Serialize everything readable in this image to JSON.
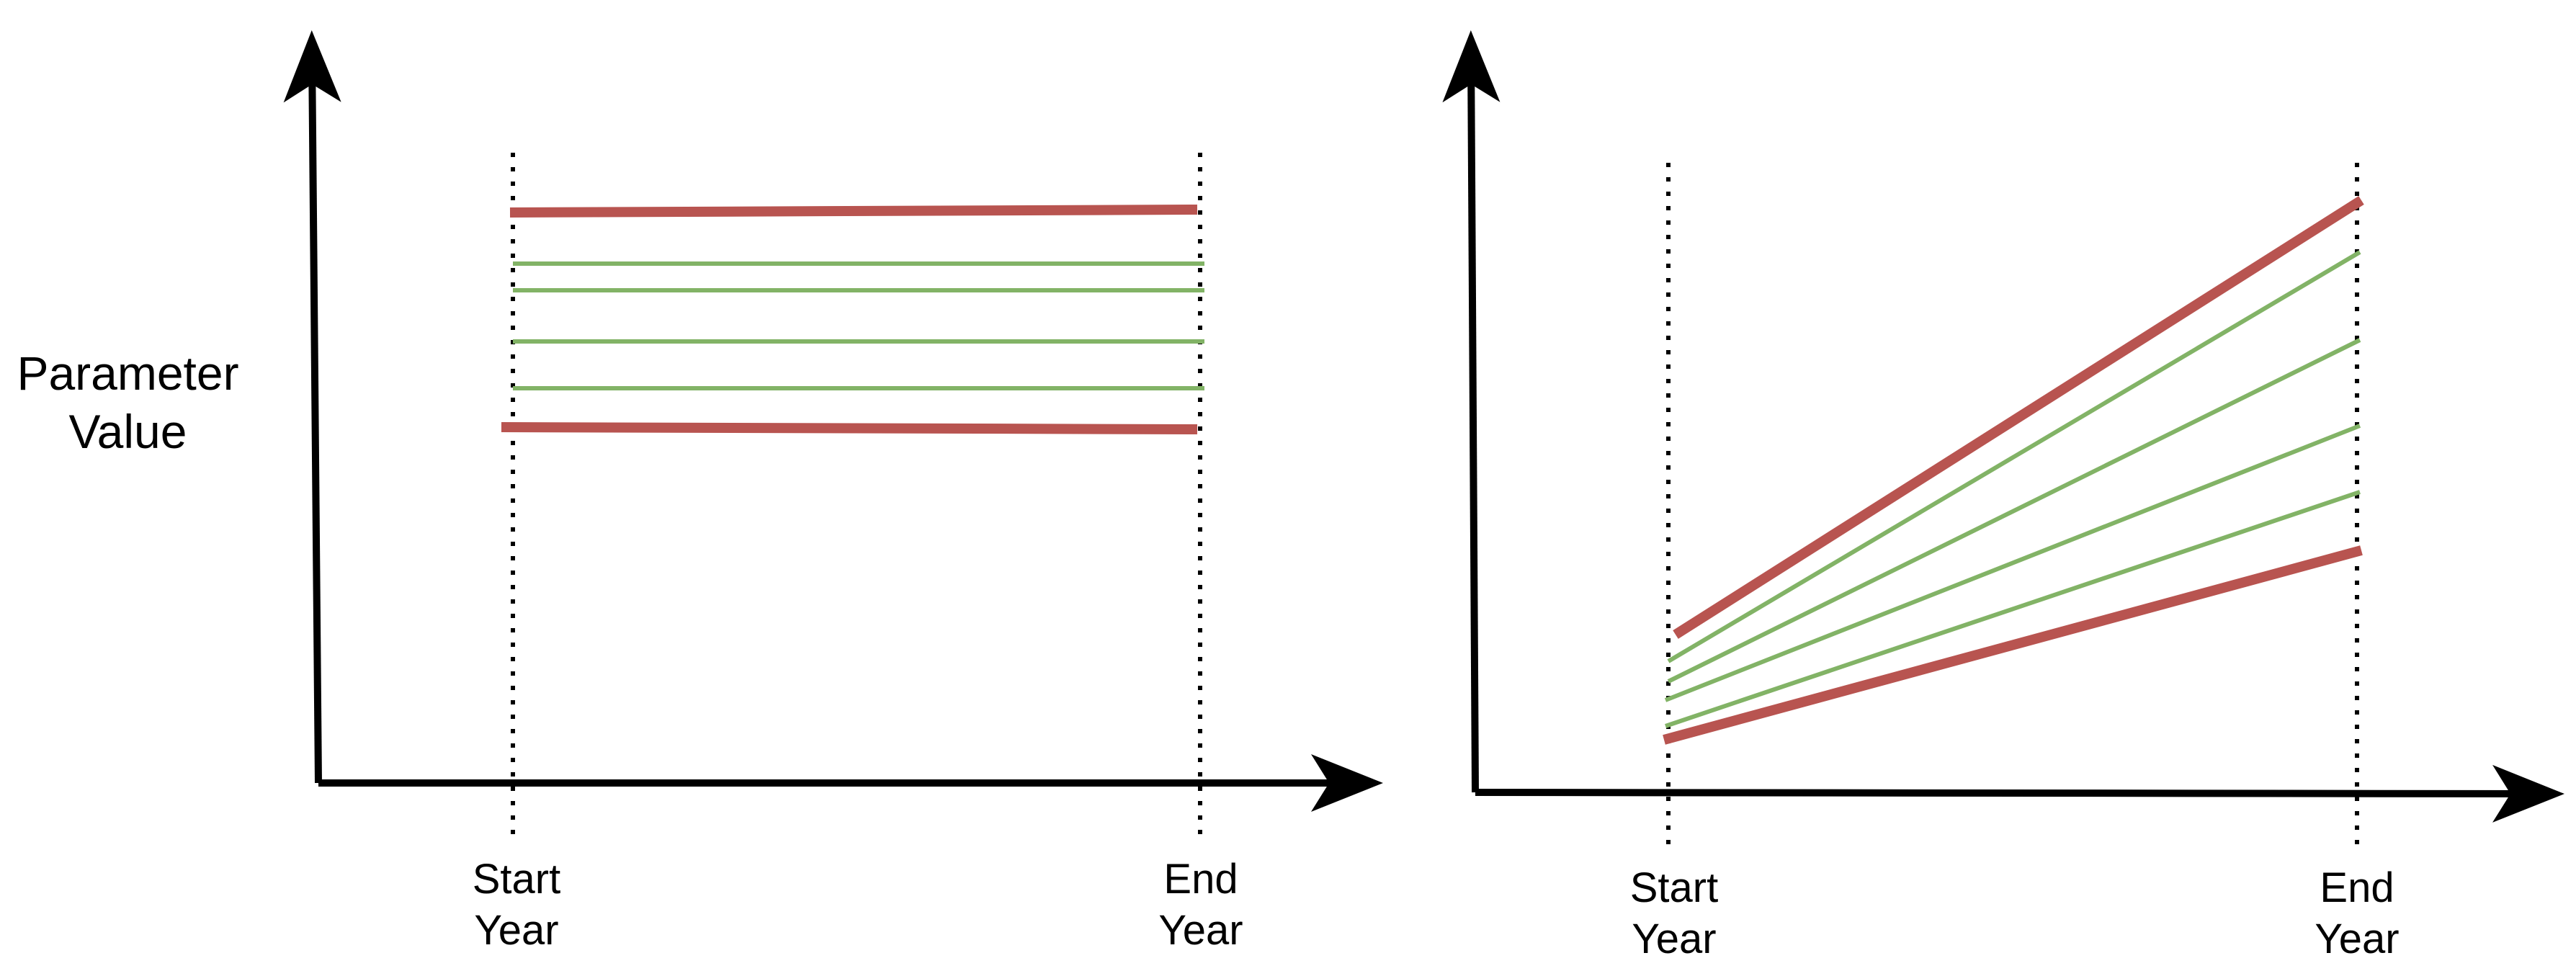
{
  "y_axis_label": {
    "line1": "Parameter",
    "line2": "Value"
  },
  "panels": [
    {
      "name": "constant",
      "start_tick": {
        "line1": "Start",
        "line2": "Year"
      },
      "end_tick": {
        "line1": "End",
        "line2": "Year"
      }
    },
    {
      "name": "linear",
      "start_tick": {
        "line1": "Start",
        "line2": "Year"
      },
      "end_tick": {
        "line1": "End",
        "line2": "Year"
      }
    }
  ],
  "colors": {
    "axis": "#000000",
    "bound_line": "#b85450",
    "sample_line": "#82b366"
  }
}
